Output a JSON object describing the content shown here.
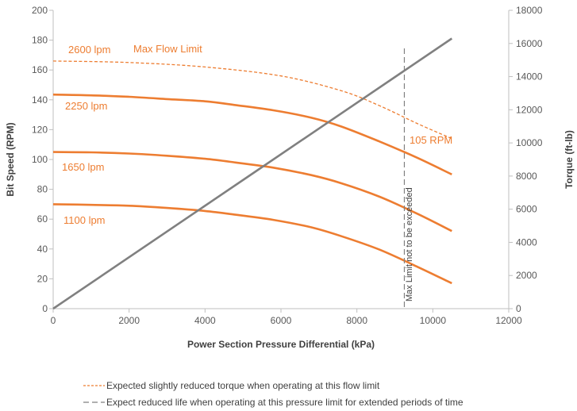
{
  "chart_data": {
    "type": "line",
    "xlabel": "Power Section Pressure Differential (kPa)",
    "ylabel": "Bit Speed (RPM)",
    "y2label": "Torque (ft-lb)",
    "xlim": [
      0,
      12000
    ],
    "ylim": [
      0,
      200
    ],
    "y2lim": [
      0,
      18000
    ],
    "x_ticks": [
      "0",
      "2000",
      "4000",
      "6000",
      "8000",
      "10000",
      "12000"
    ],
    "y_ticks": [
      "0",
      "20",
      "40",
      "60",
      "80",
      "100",
      "120",
      "140",
      "160",
      "180",
      "200"
    ],
    "y2_ticks": [
      "0",
      "2000",
      "4000",
      "6000",
      "8000",
      "10000",
      "12000",
      "14000",
      "16000",
      "18000"
    ],
    "grid": false,
    "colors": {
      "speed": "#ED7D31",
      "torque": "#808080",
      "limit": "#808080"
    },
    "series": [
      {
        "name": "2600 lpm",
        "style": "dashed",
        "axis": "left",
        "x": [
          0,
          2000,
          4000,
          6000,
          7600,
          8600,
          9600,
          10500
        ],
        "y": [
          166,
          165,
          162,
          156,
          146,
          136,
          124,
          114
        ]
      },
      {
        "name": "2250 lpm",
        "style": "solid",
        "axis": "left",
        "x": [
          0,
          1000,
          2000,
          3000,
          4000,
          4800,
          5800,
          6800,
          7600,
          8600,
          9600,
          10500
        ],
        "y": [
          143.5,
          143,
          142,
          140.5,
          139,
          136.5,
          133,
          128,
          122,
          112,
          101,
          90
        ]
      },
      {
        "name": "1650 lpm",
        "style": "solid",
        "axis": "left",
        "x": [
          0,
          1000,
          2000,
          3000,
          4000,
          4800,
          5800,
          6800,
          7600,
          8600,
          9600,
          10500
        ],
        "y": [
          105,
          104.8,
          104,
          102.5,
          100.5,
          98,
          94.5,
          89.5,
          84,
          75,
          63.5,
          52
        ]
      },
      {
        "name": "1100 lpm",
        "style": "solid",
        "axis": "left",
        "x": [
          0,
          1000,
          2000,
          3000,
          4000,
          4800,
          5800,
          6800,
          7600,
          8600,
          9600,
          10500
        ],
        "y": [
          70,
          69.6,
          69,
          67.5,
          65.5,
          63,
          59.5,
          54.5,
          48.5,
          39.5,
          28,
          17
        ]
      },
      {
        "name": "Torque",
        "style": "solid",
        "axis": "right",
        "x": [
          0,
          10500
        ],
        "y": [
          0,
          16300
        ]
      }
    ],
    "vline": {
      "x": 9250,
      "label": "Max Limit not to be exceeded"
    },
    "annotations": {
      "lpm_2600": "2600 lpm",
      "max_flow": "Max Flow Limit",
      "lpm_2250": "2250 lpm",
      "lpm_1650": "1650 lpm",
      "lpm_1100": "1100 lpm",
      "rpm_105": "105 RPM"
    },
    "legend": [
      {
        "style": "dashed-orange",
        "text": "Expected slightly reduced torque when operating at this flow limit"
      },
      {
        "style": "dashed-gray",
        "text": "Expect reduced life when operating at this pressure limit for extended periods of time"
      }
    ]
  }
}
